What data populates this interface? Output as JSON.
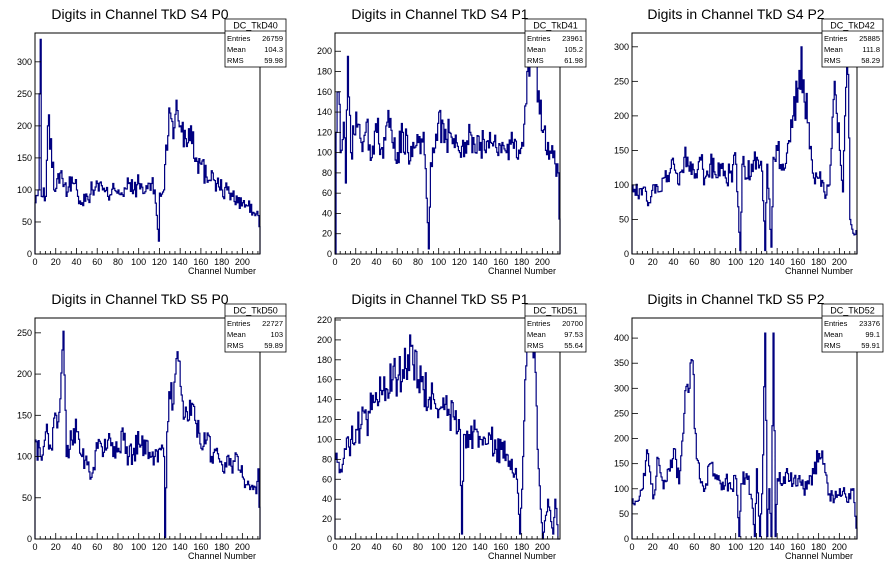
{
  "page": {
    "background": "#ffffff",
    "hist_color": "#000080"
  },
  "chart_data": [
    {
      "type": "histogram",
      "title": "Digits in Channel TkD S4 P0",
      "xlabel": "Channel Number",
      "ylabel": "",
      "xlim": [
        0,
        217
      ],
      "ylim": [
        0,
        345
      ],
      "xticks": [
        0,
        20,
        40,
        60,
        80,
        100,
        120,
        140,
        160,
        180,
        200
      ],
      "yticks": [
        50,
        100,
        150,
        200,
        250,
        300
      ],
      "stats": {
        "name": "DC_TkD40",
        "entries": "26759",
        "mean": "104.3",
        "rms": "59.98"
      },
      "keypoints": [
        [
          0,
          80
        ],
        [
          3,
          100
        ],
        [
          4,
          250
        ],
        [
          5,
          335
        ],
        [
          6,
          90
        ],
        [
          10,
          90
        ],
        [
          12,
          200
        ],
        [
          15,
          180
        ],
        [
          18,
          100
        ],
        [
          25,
          130
        ],
        [
          30,
          90
        ],
        [
          35,
          120
        ],
        [
          40,
          100
        ],
        [
          45,
          80
        ],
        [
          50,
          90
        ],
        [
          55,
          100
        ],
        [
          60,
          110
        ],
        [
          65,
          100
        ],
        [
          70,
          90
        ],
        [
          75,
          110
        ],
        [
          80,
          100
        ],
        [
          85,
          90
        ],
        [
          90,
          110
        ],
        [
          95,
          100
        ],
        [
          100,
          110
        ],
        [
          105,
          95
        ],
        [
          110,
          110
        ],
        [
          115,
          100
        ],
        [
          119,
          20
        ],
        [
          120,
          95
        ],
        [
          124,
          100
        ],
        [
          126,
          170
        ],
        [
          130,
          220
        ],
        [
          133,
          180
        ],
        [
          136,
          240
        ],
        [
          140,
          200
        ],
        [
          145,
          180
        ],
        [
          150,
          200
        ],
        [
          155,
          150
        ],
        [
          160,
          140
        ],
        [
          165,
          120
        ],
        [
          170,
          130
        ],
        [
          175,
          110
        ],
        [
          180,
          100
        ],
        [
          185,
          100
        ],
        [
          190,
          90
        ],
        [
          195,
          80
        ],
        [
          200,
          80
        ],
        [
          205,
          75
        ],
        [
          210,
          65
        ],
        [
          215,
          60
        ],
        [
          217,
          30
        ]
      ]
    },
    {
      "type": "histogram",
      "title": "Digits in Channel TkD S4 P1",
      "xlabel": "Channel Number",
      "ylabel": "",
      "xlim": [
        0,
        217
      ],
      "ylim": [
        0,
        218
      ],
      "xticks": [
        0,
        20,
        40,
        60,
        80,
        100,
        120,
        140,
        160,
        180,
        200
      ],
      "yticks": [
        20,
        40,
        60,
        80,
        100,
        120,
        140,
        160,
        180,
        200
      ],
      "stats": {
        "name": "DC_TkD41",
        "entries": "23961",
        "mean": "105.2",
        "rms": "61.98"
      },
      "keypoints": [
        [
          0,
          0
        ],
        [
          1,
          120
        ],
        [
          3,
          160
        ],
        [
          5,
          100
        ],
        [
          8,
          130
        ],
        [
          10,
          70
        ],
        [
          12,
          195
        ],
        [
          15,
          100
        ],
        [
          20,
          140
        ],
        [
          25,
          110
        ],
        [
          30,
          130
        ],
        [
          35,
          95
        ],
        [
          40,
          120
        ],
        [
          45,
          105
        ],
        [
          50,
          130
        ],
        [
          55,
          110
        ],
        [
          60,
          100
        ],
        [
          65,
          120
        ],
        [
          70,
          100
        ],
        [
          75,
          110
        ],
        [
          80,
          110
        ],
        [
          85,
          120
        ],
        [
          90,
          5
        ],
        [
          92,
          90
        ],
        [
          95,
          100
        ],
        [
          100,
          140
        ],
        [
          105,
          110
        ],
        [
          110,
          120
        ],
        [
          115,
          105
        ],
        [
          120,
          100
        ],
        [
          125,
          110
        ],
        [
          130,
          120
        ],
        [
          135,
          100
        ],
        [
          140,
          110
        ],
        [
          145,
          100
        ],
        [
          150,
          110
        ],
        [
          155,
          105
        ],
        [
          160,
          100
        ],
        [
          165,
          100
        ],
        [
          170,
          120
        ],
        [
          175,
          95
        ],
        [
          180,
          110
        ],
        [
          185,
          180
        ],
        [
          188,
          200
        ],
        [
          190,
          220
        ],
        [
          192,
          190
        ],
        [
          195,
          150
        ],
        [
          200,
          120
        ],
        [
          205,
          110
        ],
        [
          210,
          95
        ],
        [
          215,
          80
        ],
        [
          217,
          0
        ]
      ]
    },
    {
      "type": "histogram",
      "title": "Digits in Channel TkD S4 P2",
      "xlabel": "Channel Number",
      "ylabel": "",
      "xlim": [
        0,
        217
      ],
      "ylim": [
        0,
        320
      ],
      "xticks": [
        0,
        20,
        40,
        60,
        80,
        100,
        120,
        140,
        160,
        180,
        200
      ],
      "yticks": [
        50,
        100,
        150,
        200,
        250,
        300
      ],
      "stats": {
        "name": "DC_TkD42",
        "entries": "25885",
        "mean": "111.8",
        "rms": "58.29"
      },
      "keypoints": [
        [
          0,
          100
        ],
        [
          5,
          85
        ],
        [
          10,
          95
        ],
        [
          15,
          70
        ],
        [
          20,
          100
        ],
        [
          25,
          90
        ],
        [
          30,
          110
        ],
        [
          35,
          105
        ],
        [
          40,
          130
        ],
        [
          45,
          100
        ],
        [
          50,
          140
        ],
        [
          55,
          120
        ],
        [
          60,
          110
        ],
        [
          65,
          140
        ],
        [
          70,
          110
        ],
        [
          75,
          130
        ],
        [
          80,
          115
        ],
        [
          85,
          130
        ],
        [
          90,
          110
        ],
        [
          95,
          120
        ],
        [
          100,
          130
        ],
        [
          104,
          5
        ],
        [
          106,
          130
        ],
        [
          110,
          110
        ],
        [
          115,
          130
        ],
        [
          120,
          140
        ],
        [
          125,
          120
        ],
        [
          128,
          5
        ],
        [
          130,
          130
        ],
        [
          134,
          10
        ],
        [
          136,
          140
        ],
        [
          140,
          150
        ],
        [
          145,
          130
        ],
        [
          150,
          160
        ],
        [
          155,
          200
        ],
        [
          160,
          240
        ],
        [
          163,
          300
        ],
        [
          166,
          220
        ],
        [
          170,
          190
        ],
        [
          175,
          110
        ],
        [
          180,
          110
        ],
        [
          185,
          90
        ],
        [
          190,
          100
        ],
        [
          195,
          250
        ],
        [
          200,
          150
        ],
        [
          203,
          90
        ],
        [
          205,
          200
        ],
        [
          208,
          260
        ],
        [
          210,
          50
        ],
        [
          213,
          30
        ],
        [
          217,
          30
        ]
      ]
    },
    {
      "type": "histogram",
      "title": "Digits in Channel TkD S5 P0",
      "xlabel": "Channel Number",
      "ylabel": "",
      "xlim": [
        0,
        217
      ],
      "ylim": [
        0,
        268
      ],
      "xticks": [
        0,
        20,
        40,
        60,
        80,
        100,
        120,
        140,
        160,
        180,
        200
      ],
      "yticks": [
        50,
        100,
        150,
        200,
        250
      ],
      "stats": {
        "name": "DC_TkD50",
        "entries": "22727",
        "mean": "103",
        "rms": "59.89"
      },
      "keypoints": [
        [
          0,
          120
        ],
        [
          5,
          100
        ],
        [
          10,
          130
        ],
        [
          15,
          110
        ],
        [
          20,
          150
        ],
        [
          24,
          170
        ],
        [
          27,
          252
        ],
        [
          30,
          100
        ],
        [
          35,
          120
        ],
        [
          40,
          130
        ],
        [
          45,
          100
        ],
        [
          50,
          90
        ],
        [
          55,
          80
        ],
        [
          60,
          110
        ],
        [
          65,
          100
        ],
        [
          70,
          120
        ],
        [
          75,
          100
        ],
        [
          80,
          110
        ],
        [
          85,
          120
        ],
        [
          90,
          100
        ],
        [
          95,
          110
        ],
        [
          100,
          115
        ],
        [
          105,
          120
        ],
        [
          110,
          105
        ],
        [
          115,
          100
        ],
        [
          120,
          110
        ],
        [
          124,
          100
        ],
        [
          125,
          2
        ],
        [
          127,
          130
        ],
        [
          130,
          170
        ],
        [
          135,
          200
        ],
        [
          138,
          216
        ],
        [
          140,
          185
        ],
        [
          145,
          160
        ],
        [
          150,
          150
        ],
        [
          155,
          140
        ],
        [
          160,
          110
        ],
        [
          165,
          120
        ],
        [
          170,
          100
        ],
        [
          175,
          110
        ],
        [
          180,
          90
        ],
        [
          185,
          100
        ],
        [
          190,
          80
        ],
        [
          195,
          100
        ],
        [
          200,
          75
        ],
        [
          205,
          70
        ],
        [
          210,
          60
        ],
        [
          213,
          55
        ],
        [
          215,
          85
        ],
        [
          217,
          0
        ]
      ]
    },
    {
      "type": "histogram",
      "title": "Digits in Channel TkD S5 P1",
      "xlabel": "Channel Number",
      "ylabel": "",
      "xlim": [
        0,
        217
      ],
      "ylim": [
        0,
        222
      ],
      "xticks": [
        0,
        20,
        40,
        60,
        80,
        100,
        120,
        140,
        160,
        180,
        200
      ],
      "yticks": [
        20,
        40,
        60,
        80,
        100,
        120,
        140,
        160,
        180,
        200,
        220
      ],
      "stats": {
        "name": "DC_TkD51",
        "entries": "20700",
        "mean": "97.53",
        "rms": "55.64"
      },
      "keypoints": [
        [
          0,
          80
        ],
        [
          5,
          70
        ],
        [
          10,
          90
        ],
        [
          15,
          100
        ],
        [
          20,
          110
        ],
        [
          25,
          115
        ],
        [
          30,
          120
        ],
        [
          35,
          130
        ],
        [
          40,
          140
        ],
        [
          45,
          145
        ],
        [
          50,
          150
        ],
        [
          55,
          160
        ],
        [
          60,
          160
        ],
        [
          65,
          170
        ],
        [
          70,
          185
        ],
        [
          75,
          175
        ],
        [
          80,
          160
        ],
        [
          85,
          150
        ],
        [
          90,
          140
        ],
        [
          95,
          140
        ],
        [
          100,
          130
        ],
        [
          105,
          130
        ],
        [
          110,
          125
        ],
        [
          115,
          120
        ],
        [
          120,
          110
        ],
        [
          122,
          5
        ],
        [
          124,
          105
        ],
        [
          130,
          100
        ],
        [
          135,
          110
        ],
        [
          140,
          100
        ],
        [
          145,
          95
        ],
        [
          150,
          100
        ],
        [
          155,
          90
        ],
        [
          160,
          90
        ],
        [
          165,
          85
        ],
        [
          170,
          80
        ],
        [
          175,
          60
        ],
        [
          178,
          5
        ],
        [
          180,
          50
        ],
        [
          183,
          160
        ],
        [
          186,
          220
        ],
        [
          188,
          190
        ],
        [
          190,
          220
        ],
        [
          192,
          190
        ],
        [
          195,
          90
        ],
        [
          198,
          30
        ],
        [
          200,
          0
        ],
        [
          205,
          40
        ],
        [
          210,
          5
        ],
        [
          212,
          40
        ],
        [
          215,
          0
        ],
        [
          217,
          0
        ]
      ]
    },
    {
      "type": "histogram",
      "title": "Digits in Channel TkD S5 P2",
      "xlabel": "Channel Number",
      "ylabel": "",
      "xlim": [
        0,
        217
      ],
      "ylim": [
        0,
        440
      ],
      "xticks": [
        0,
        20,
        40,
        60,
        80,
        100,
        120,
        140,
        160,
        180,
        200
      ],
      "yticks": [
        50,
        100,
        150,
        200,
        250,
        300,
        350,
        400
      ],
      "stats": {
        "name": "DC_TkD52",
        "entries": "23376",
        "mean": "99.1",
        "rms": "59.91"
      },
      "keypoints": [
        [
          0,
          80
        ],
        [
          5,
          75
        ],
        [
          10,
          100
        ],
        [
          15,
          170
        ],
        [
          20,
          80
        ],
        [
          25,
          160
        ],
        [
          30,
          100
        ],
        [
          35,
          140
        ],
        [
          40,
          180
        ],
        [
          45,
          110
        ],
        [
          50,
          250
        ],
        [
          55,
          300
        ],
        [
          58,
          355
        ],
        [
          60,
          220
        ],
        [
          65,
          120
        ],
        [
          70,
          100
        ],
        [
          75,
          150
        ],
        [
          80,
          120
        ],
        [
          85,
          110
        ],
        [
          90,
          120
        ],
        [
          95,
          100
        ],
        [
          100,
          120
        ],
        [
          103,
          5
        ],
        [
          105,
          110
        ],
        [
          110,
          130
        ],
        [
          115,
          80
        ],
        [
          118,
          5
        ],
        [
          120,
          140
        ],
        [
          123,
          5
        ],
        [
          125,
          90
        ],
        [
          128,
          410
        ],
        [
          130,
          5
        ],
        [
          132,
          100
        ],
        [
          134,
          5
        ],
        [
          136,
          410
        ],
        [
          138,
          5
        ],
        [
          140,
          120
        ],
        [
          145,
          110
        ],
        [
          150,
          130
        ],
        [
          155,
          110
        ],
        [
          160,
          120
        ],
        [
          165,
          100
        ],
        [
          170,
          110
        ],
        [
          175,
          130
        ],
        [
          180,
          170
        ],
        [
          185,
          150
        ],
        [
          190,
          90
        ],
        [
          195,
          80
        ],
        [
          200,
          100
        ],
        [
          205,
          90
        ],
        [
          210,
          80
        ],
        [
          213,
          100
        ],
        [
          217,
          0
        ]
      ]
    }
  ]
}
